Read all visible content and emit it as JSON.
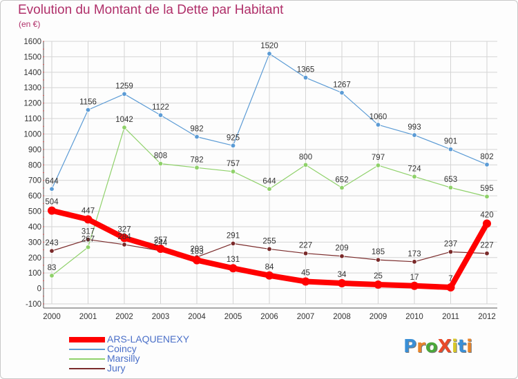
{
  "title": "Evolution du Montant de la Dette par Habitant",
  "subtitle": "(en €)",
  "logo": {
    "text": "ProXiti",
    "colors": [
      "#3a8fd6",
      "#e8842a",
      "#4aa83a",
      "#e84a2a",
      "#d8c82a",
      "#3a8fd6",
      "#e8842a"
    ]
  },
  "chart_data": {
    "type": "line",
    "x": [
      "2000",
      "2001",
      "2002",
      "2003",
      "2004",
      "2005",
      "2006",
      "2007",
      "2008",
      "2009",
      "2010",
      "2011",
      "2012"
    ],
    "ylim": [
      -100,
      1600
    ],
    "yticks": [
      "-100",
      "0",
      "100",
      "200",
      "300",
      "400",
      "500",
      "600",
      "700",
      "800",
      "900",
      "1000",
      "1100",
      "1200",
      "1300",
      "1400",
      "1500",
      "1600"
    ],
    "grid": true,
    "legend_position": "bottom-left",
    "series": [
      {
        "name": "ARS-LAQUENEXY",
        "color": "#ff0000",
        "values": [
          504,
          447,
          327,
          257,
          183,
          131,
          84,
          45,
          34,
          25,
          17,
          7,
          420
        ],
        "labels": [
          "504",
          "447",
          "327",
          "257",
          "183",
          "131",
          "84",
          "45",
          "34",
          "25",
          "17",
          "7",
          "420"
        ]
      },
      {
        "name": "Coincy",
        "color": "#5b9bd5",
        "values": [
          644,
          1156,
          1259,
          1122,
          982,
          925,
          1520,
          1365,
          1267,
          1060,
          993,
          901,
          802
        ],
        "labels": [
          "644",
          "1156",
          "1259",
          "1122",
          "982",
          "925",
          "1520",
          "1365",
          "1267",
          "1060",
          "993",
          "901",
          "802"
        ]
      },
      {
        "name": "Marsilly",
        "color": "#8fd16a",
        "values": [
          83,
          267,
          1042,
          808,
          782,
          757,
          644,
          800,
          652,
          797,
          724,
          653,
          595
        ],
        "labels": [
          "83",
          "267",
          "1042",
          "808",
          "782",
          "757",
          "644",
          "800",
          "652",
          "797",
          "724",
          "653",
          "595"
        ]
      },
      {
        "name": "Jury",
        "color": "#7a2a2a",
        "values": [
          243,
          317,
          284,
          244,
          203,
          291,
          255,
          227,
          209,
          185,
          173,
          237,
          227
        ],
        "labels": [
          "243",
          "317",
          "284",
          "244",
          "203",
          "291",
          "255",
          "227",
          "209",
          "185",
          "173",
          "237",
          "227"
        ]
      }
    ]
  }
}
